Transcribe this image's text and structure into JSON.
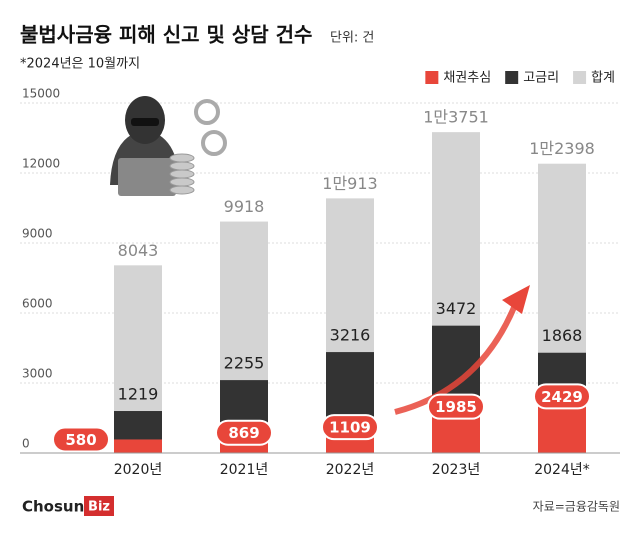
{
  "chart_data": {
    "type": "bar",
    "title": "불법사금융 피해 신고 및 상담 건수",
    "unit": "단위: 건",
    "subtitle": "*2024년은 10월까지",
    "categories": [
      "2020년",
      "2021년",
      "2022년",
      "2023년",
      "2024년*"
    ],
    "series": [
      {
        "name": "채권추심",
        "color": "#e8463a",
        "values": [
          580,
          869,
          1109,
          1985,
          2429
        ]
      },
      {
        "name": "고금리",
        "color": "#333333",
        "values": [
          1219,
          2255,
          3216,
          3472,
          1868
        ]
      },
      {
        "name": "합계",
        "color": "#d4d4d4",
        "values": [
          8043,
          9918,
          10913,
          13751,
          12398
        ],
        "value_labels": [
          "8043",
          "9918",
          "1만913",
          "1만3751",
          "1만2398"
        ]
      }
    ],
    "ylim": [
      0,
      15000
    ],
    "yticks": [
      0,
      3000,
      6000,
      9000,
      12000,
      15000
    ],
    "grid": true,
    "legend": "top-right",
    "source": "자료=금융감독원",
    "logo": {
      "text": "Chosun",
      "badge": "Biz"
    }
  }
}
